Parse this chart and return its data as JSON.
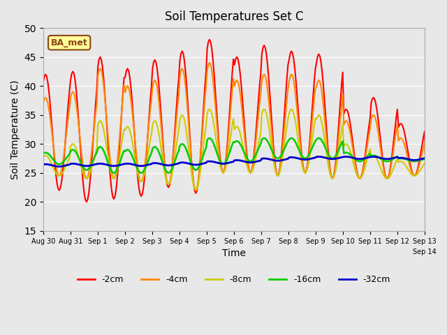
{
  "title": "Soil Temperatures Set C",
  "xlabel": "Time",
  "ylabel": "Soil Temperature (C)",
  "ylim": [
    15,
    50
  ],
  "yticks": [
    15,
    20,
    25,
    30,
    35,
    40,
    45,
    50
  ],
  "background_color": "#e8e8e8",
  "plot_bg_color": "#e8e8e8",
  "label_box_text": "BA_met",
  "label_box_facecolor": "#ffff99",
  "label_box_edgecolor": "#8b4513",
  "series_colors": {
    "-2cm": "#ff0000",
    "-4cm": "#ff8800",
    "-8cm": "#cccc00",
    "-16cm": "#00cc00",
    "-32cm": "#0000cc"
  },
  "series_linewidths": {
    "-2cm": 1.5,
    "-4cm": 1.5,
    "-8cm": 1.5,
    "-16cm": 1.8,
    "-32cm": 2.0
  },
  "n_days": 15,
  "samples_per_day": 24,
  "xtick_positions": [
    0,
    1,
    2,
    3,
    4,
    5,
    6,
    7,
    8,
    9,
    10,
    11,
    12,
    13,
    14
  ],
  "xtick_labels": [
    "Aug 30",
    "Aug 31",
    "Sep 1",
    "Sep 2",
    "Sep 3",
    "Sep 4",
    "Sep 5",
    "Sep 6",
    "Sep 7",
    "Sep 8",
    "Sep 9",
    "Sep 10",
    "Sep 11",
    "Sep 12",
    "Sep 13"
  ],
  "cm2_peaks": [
    42,
    42.5,
    45,
    43,
    44.5,
    46,
    48,
    45,
    47,
    46,
    45.5,
    36,
    38,
    33.5,
    25
  ],
  "cm2_troughs": [
    22,
    20,
    20.5,
    21,
    22.5,
    21.5,
    25,
    25,
    24.5,
    25,
    24,
    24,
    24,
    24.5,
    25
  ],
  "cm4_peaks": [
    38,
    39,
    43,
    40,
    41,
    43,
    44,
    41,
    42,
    42,
    41,
    34,
    35,
    31,
    27
  ],
  "cm4_troughs": [
    24.5,
    24,
    24,
    23.5,
    23,
    22,
    25,
    25,
    24.5,
    25,
    24,
    24,
    24,
    24.5,
    26
  ],
  "cm8_peaks": [
    28,
    30,
    34,
    33,
    34,
    35,
    36,
    33,
    36,
    36,
    35,
    30,
    28,
    27,
    27
  ],
  "cm8_troughs": [
    24.5,
    24,
    24,
    23.5,
    23,
    22,
    25,
    25,
    24.5,
    25,
    24,
    24,
    24,
    24.5,
    26
  ],
  "cm16_peaks": [
    28.5,
    29,
    29.5,
    29,
    29.5,
    30,
    31,
    30.5,
    31,
    31,
    31,
    28.5,
    28,
    27.5,
    27
  ],
  "cm16_troughs": [
    26.5,
    25.5,
    25,
    25,
    25,
    25.5,
    26.5,
    27,
    27.5,
    27.5,
    27.5,
    27,
    27,
    27,
    26.5
  ],
  "cm32_peaks": [
    26.5,
    26.6,
    26.6,
    26.6,
    26.7,
    26.8,
    27.0,
    27.2,
    27.5,
    27.7,
    27.8,
    27.8,
    27.8,
    27.6,
    27.5
  ],
  "cm32_troughs": [
    26.1,
    26.2,
    26.2,
    26.2,
    26.3,
    26.4,
    26.6,
    26.8,
    27.1,
    27.3,
    27.4,
    27.4,
    27.4,
    27.2,
    27.1
  ]
}
